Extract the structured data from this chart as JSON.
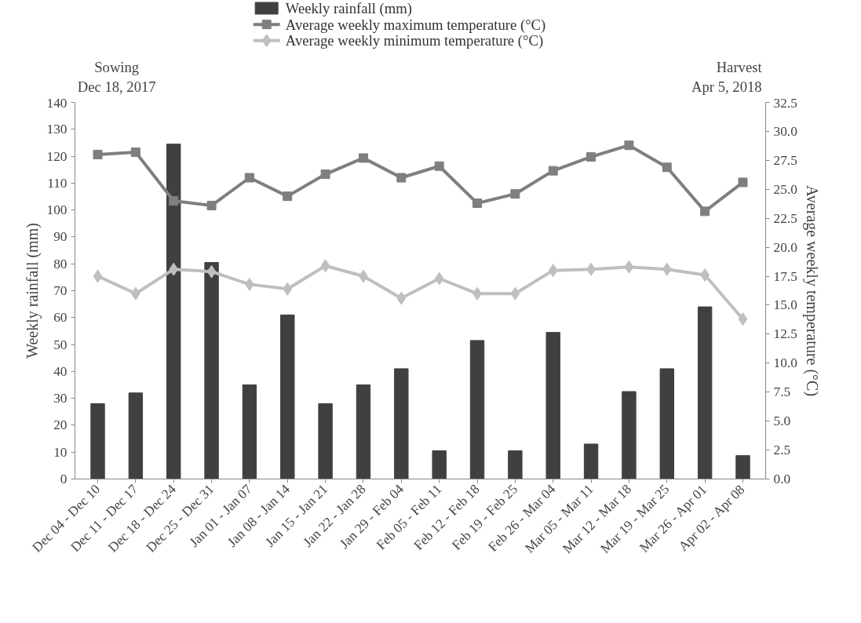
{
  "chart_data": {
    "type": "bar",
    "categories": [
      "Dec 04 - Dec 10",
      "Dec 11 - Dec 17",
      "Dec 18 - Dec 24",
      "Dec 25 - Dec 31",
      "Jan 01 - Jan 07",
      "Jan 08 - Jan 14",
      "Jan 15 - Jan 21",
      "Jan 22 - Jan 28",
      "Jan 29 - Feb 04",
      "Feb 05 - Feb 11",
      "Feb 12 - Feb 18",
      "Feb 19 - Feb 25",
      "Feb 26 - Mar 04",
      "Mar 05 - Mar 11",
      "Mar 12 - Mar 18",
      "Mar 19 - Mar 25",
      "Mar 26 - Apr 01",
      "Apr 02 - Apr 08"
    ],
    "series": [
      {
        "name": "Weekly rainfall (mm)",
        "color": "#404040",
        "values": [
          28,
          32,
          124.5,
          80.5,
          35,
          61,
          28,
          35,
          41,
          10.5,
          51.5,
          10.5,
          54.5,
          13,
          32.5,
          41,
          64,
          8.7
        ]
      },
      {
        "name": "Average weekly maximum temperature (°C)",
        "type": "line",
        "axis": "y2",
        "marker": "square",
        "color": "#7f7f7f",
        "values": [
          28.0,
          28.2,
          24.0,
          23.6,
          26.0,
          24.4,
          26.3,
          27.7,
          26.0,
          27.0,
          23.8,
          24.6,
          26.6,
          27.8,
          28.8,
          26.9,
          23.1,
          25.6
        ]
      },
      {
        "name": "Average weekly minimum temperature (°C)",
        "type": "line",
        "axis": "y2",
        "marker": "diamond",
        "color": "#bfbfbf",
        "values": [
          17.5,
          16.0,
          18.1,
          17.9,
          16.8,
          16.4,
          18.4,
          17.5,
          15.6,
          17.3,
          16.0,
          16.0,
          18.0,
          18.1,
          18.3,
          18.1,
          17.6,
          13.8
        ]
      }
    ],
    "ylabel": "Weekly rainfall (mm)",
    "y2label": "Average weekly temperature (°C)",
    "ylim": [
      0,
      140
    ],
    "yticks": [
      0,
      10,
      20,
      30,
      40,
      50,
      60,
      70,
      80,
      90,
      100,
      110,
      120,
      130,
      140
    ],
    "y2lim": [
      0,
      32.5
    ],
    "y2ticks": [
      {
        "value": 0,
        "label": "0.0"
      },
      {
        "value": 2.5,
        "label": "2.5"
      },
      {
        "value": 5,
        "label": "5.0"
      },
      {
        "value": 7.5,
        "label": "7.5"
      },
      {
        "value": 10,
        "label": "10.0"
      },
      {
        "value": 12.5,
        "label": "12.5"
      },
      {
        "value": 15,
        "label": "15.0"
      },
      {
        "value": 17.5,
        "label": "17.5"
      },
      {
        "value": 20,
        "label": "20.0"
      },
      {
        "value": 22.5,
        "label": "22.5"
      },
      {
        "value": 25,
        "label": "25.0"
      },
      {
        "value": 27.5,
        "label": "27.5"
      },
      {
        "value": 30,
        "label": "30.0"
      },
      {
        "value": 32.5,
        "label": "32.5"
      }
    ],
    "annotations": [
      "Sowing\nDec 18, 2017",
      "Harvest\nApr 5, 2018"
    ],
    "legend": "top",
    "grid": false,
    "line_style": "solid"
  }
}
